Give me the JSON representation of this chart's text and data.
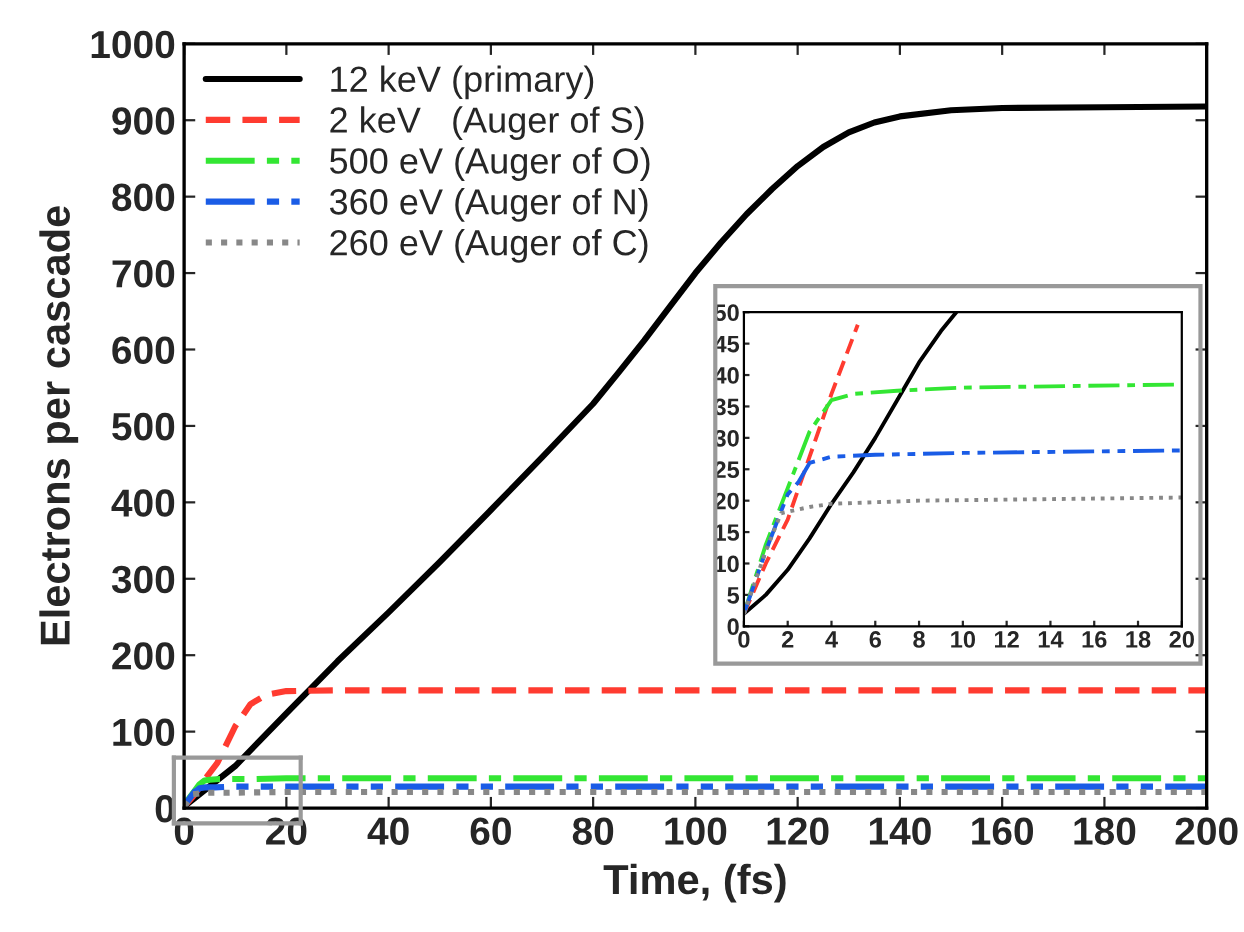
{
  "chart_data": [
    {
      "type": "line",
      "xlabel": "Time, (fs)",
      "ylabel": "Electrons per cascade",
      "xlim": [
        0,
        200
      ],
      "ylim": [
        0,
        1000
      ],
      "xticks": [
        0,
        20,
        40,
        60,
        80,
        100,
        120,
        140,
        160,
        180,
        200
      ],
      "yticks": [
        0,
        100,
        200,
        300,
        400,
        500,
        600,
        700,
        800,
        900,
        1000
      ],
      "grid": false,
      "legend": "top left",
      "series": [
        {
          "name": "12 keV (primary)",
          "color": "#000000",
          "line_style": "solid",
          "x": [
            0,
            10,
            20,
            30,
            40,
            50,
            60,
            70,
            80,
            85,
            90,
            95,
            100,
            105,
            110,
            115,
            120,
            125,
            130,
            135,
            140,
            150,
            160,
            180,
            200
          ],
          "values": [
            2,
            55,
            124,
            192,
            256,
            322,
            390,
            459,
            529,
            570,
            612,
            656,
            700,
            740,
            777,
            810,
            840,
            865,
            884,
            897,
            905,
            913,
            916,
            917,
            918
          ]
        },
        {
          "name": "2 keV   (Auger of S)",
          "color": "#ff3b30",
          "line_style": "dashed",
          "x": [
            0,
            2,
            4,
            6.5,
            10,
            13,
            16,
            20,
            30,
            100,
            200
          ],
          "values": [
            2,
            17,
            37,
            59,
            107,
            136,
            148,
            153,
            154,
            154,
            154
          ]
        },
        {
          "name": "500 eV (Auger of O)",
          "color": "#33e633",
          "line_style": "dashdot",
          "x": [
            0,
            1,
            2,
            3,
            4,
            5,
            7,
            10,
            14,
            20,
            50,
            100,
            200
          ],
          "values": [
            2,
            13,
            22,
            31,
            36,
            37,
            38,
            38,
            38,
            39,
            39,
            39,
            39
          ]
        },
        {
          "name": "360 eV (Auger of N)",
          "color": "#1a5ce6",
          "line_style": "dashdotdot",
          "x": [
            0,
            1,
            2,
            2.5,
            3,
            4,
            6,
            10,
            20,
            50,
            100,
            200
          ],
          "values": [
            2,
            12,
            21,
            23,
            26,
            27,
            27,
            28,
            28,
            28,
            28,
            28
          ]
        },
        {
          "name": "260 eV (Auger of C)",
          "color": "#888888",
          "line_style": "dotted",
          "x": [
            0,
            1,
            1.7,
            3,
            4,
            8,
            20,
            50,
            100,
            200
          ],
          "values": [
            2,
            12,
            18,
            19,
            20,
            20,
            21,
            21,
            21,
            21
          ]
        }
      ]
    },
    {
      "type": "line",
      "xlim": [
        0,
        20
      ],
      "ylim": [
        0,
        50
      ],
      "xticks": [
        0,
        2,
        4,
        6,
        8,
        10,
        12,
        14,
        16,
        18,
        20
      ],
      "yticks": [
        0,
        5,
        10,
        15,
        20,
        25,
        30,
        35,
        40,
        45,
        50
      ],
      "grid": false,
      "series": [
        {
          "color": "#000000",
          "line_style": "solid",
          "x": [
            0,
            1,
            2,
            3,
            4,
            5,
            6,
            7,
            8,
            9,
            9.7
          ],
          "values": [
            2,
            5,
            9,
            14,
            19.5,
            24.5,
            30,
            36,
            42,
            47,
            50
          ]
        },
        {
          "color": "#ff3b30",
          "line_style": "dashed",
          "x": [
            0,
            1,
            2,
            3,
            4,
            5.2
          ],
          "values": [
            2,
            10,
            17,
            27,
            37,
            48
          ]
        },
        {
          "color": "#33e633",
          "line_style": "dashdot",
          "x": [
            0,
            1,
            2,
            3,
            4,
            5,
            7,
            10,
            14,
            20
          ],
          "values": [
            2,
            13,
            22,
            31,
            36,
            37,
            37.5,
            38,
            38.2,
            38.5
          ]
        },
        {
          "color": "#1a5ce6",
          "line_style": "dashdotdot",
          "x": [
            0,
            1,
            2,
            2.5,
            3,
            4,
            6,
            10,
            20
          ],
          "values": [
            2,
            12,
            21,
            23,
            26,
            27,
            27.3,
            27.6,
            28
          ]
        },
        {
          "color": "#888888",
          "line_style": "dotted",
          "x": [
            0,
            1,
            1.7,
            3,
            4,
            8,
            20
          ],
          "values": [
            2,
            12,
            18,
            19,
            19.5,
            20,
            20.5
          ]
        }
      ]
    }
  ]
}
